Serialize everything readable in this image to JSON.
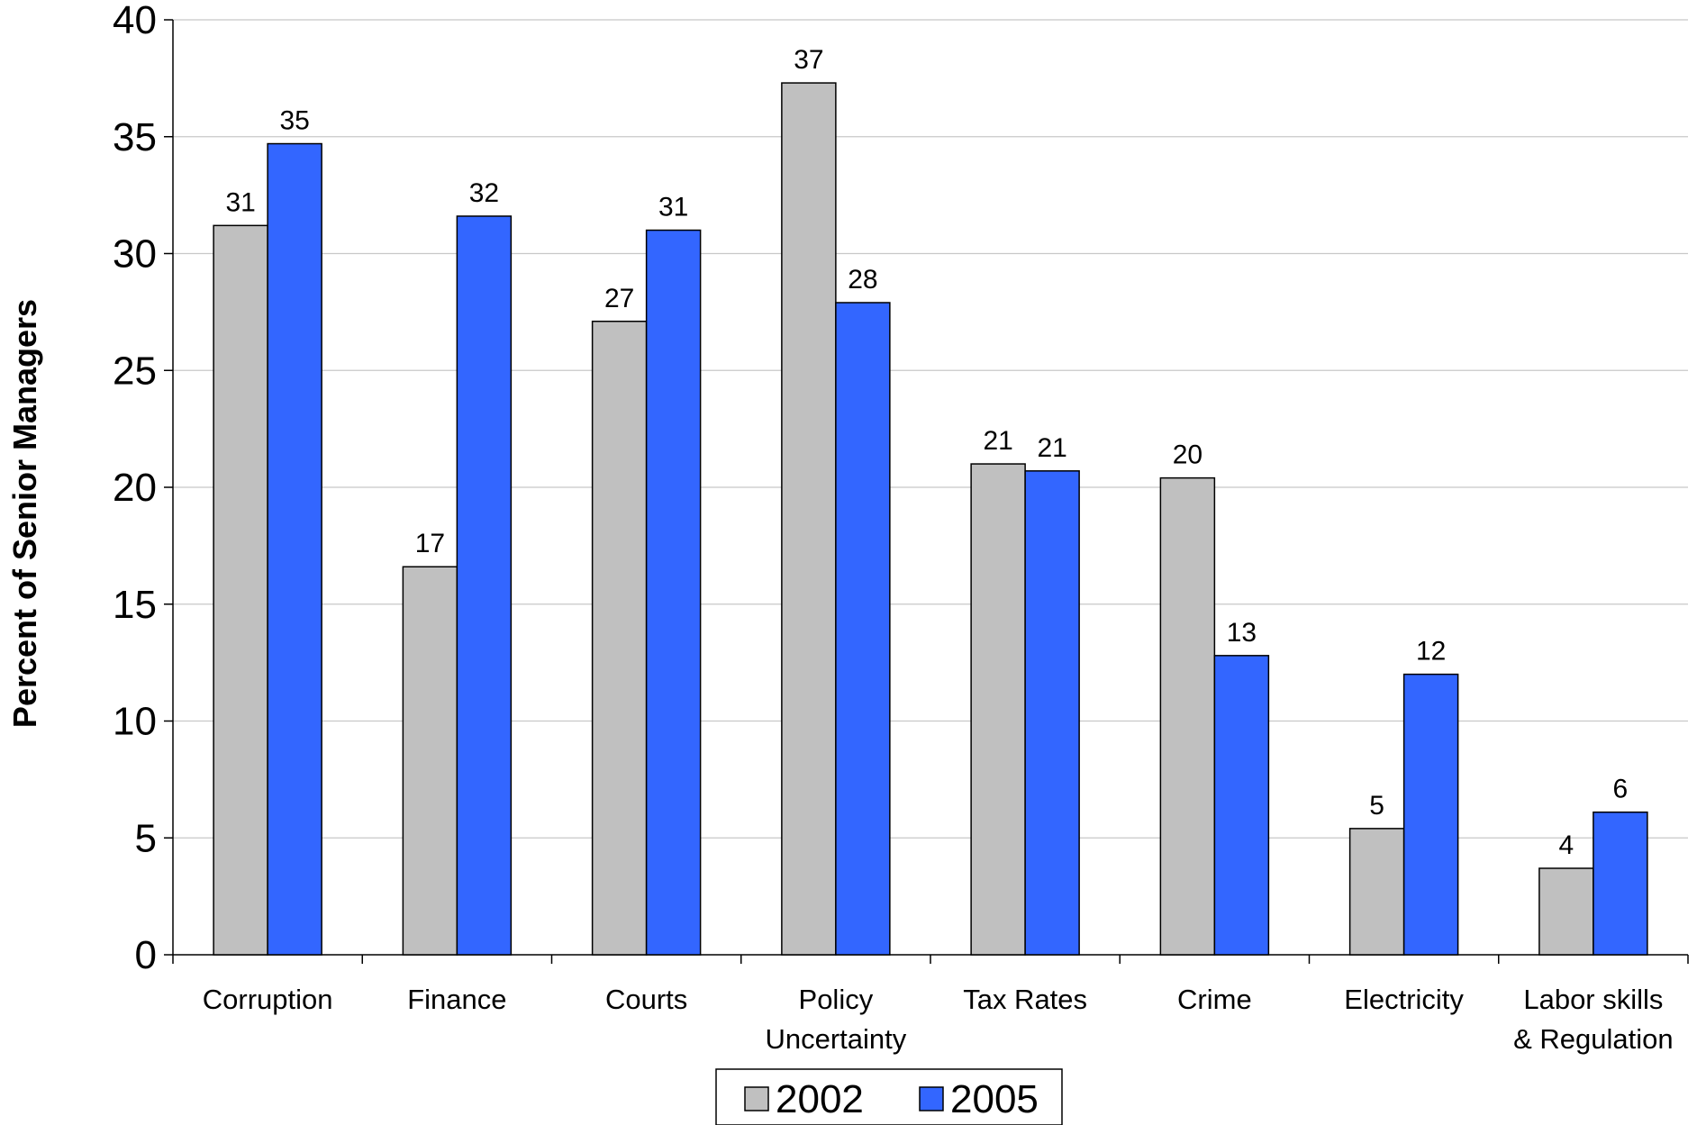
{
  "chart_data": {
    "type": "bar",
    "title": "",
    "xlabel": "",
    "ylabel": "Percent of Senior Managers",
    "ylim": [
      0,
      40
    ],
    "yticks": [
      0,
      5,
      10,
      15,
      20,
      25,
      30,
      35,
      40
    ],
    "grid": true,
    "legend_position": "bottom-center",
    "categories": [
      [
        "Corruption"
      ],
      [
        "Finance"
      ],
      [
        "Courts"
      ],
      [
        "Policy",
        "Uncertainty"
      ],
      [
        "Tax Rates"
      ],
      [
        "Crime"
      ],
      [
        "Electricity"
      ],
      [
        "Labor skills",
        "& Regulation"
      ]
    ],
    "series": [
      {
        "name": "2002",
        "color": "#c0c0c0",
        "values": [
          31.2,
          16.6,
          27.1,
          37.3,
          21.0,
          20.4,
          5.4,
          3.7
        ],
        "labels": [
          "31",
          "17",
          "27",
          "37",
          "21",
          "20",
          "5",
          "4"
        ]
      },
      {
        "name": "2005",
        "color": "#3366ff",
        "values": [
          34.7,
          31.6,
          31.0,
          27.9,
          20.7,
          12.8,
          12.0,
          6.1
        ],
        "labels": [
          "35",
          "32",
          "31",
          "28",
          "21",
          "13",
          "12",
          "6"
        ]
      }
    ]
  }
}
